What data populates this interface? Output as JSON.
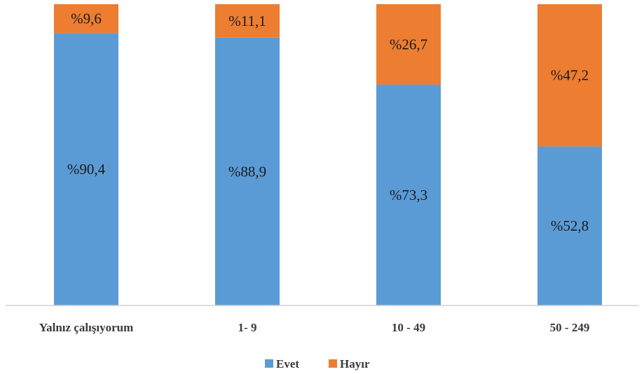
{
  "chart_data": {
    "type": "bar",
    "stacked": true,
    "percent": true,
    "categories": [
      "Yalnız çalışıyorum",
      "1- 9",
      "10 - 49",
      "50 - 249"
    ],
    "series": [
      {
        "name": "Evet",
        "values": [
          90.4,
          88.9,
          73.3,
          52.8
        ],
        "labels": [
          "%90,4",
          "%88,9",
          "%73,3",
          "%52,8"
        ],
        "color": "#5B9BD5"
      },
      {
        "name": "Hayır",
        "values": [
          9.6,
          11.1,
          26.7,
          47.2
        ],
        "labels": [
          "%9,6",
          "%11,1",
          "%26,7",
          "%47,2"
        ],
        "color": "#ED7D31"
      }
    ],
    "ylim": [
      0,
      100
    ],
    "grid": false,
    "legend_position": "bottom"
  }
}
